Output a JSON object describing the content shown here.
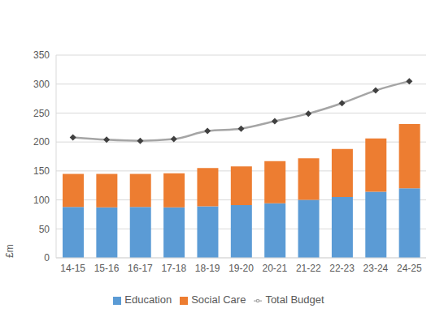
{
  "chart_data": {
    "type": "bar",
    "categories": [
      "14-15",
      "15-16",
      "16-17",
      "17-18",
      "18-19",
      "19-20",
      "20-21",
      "21-22",
      "22-23",
      "23-24",
      "24-25"
    ],
    "series": [
      {
        "name": "Education",
        "color": "#5b9bd5",
        "values": [
          88,
          87,
          88,
          87,
          89,
          91,
          94,
          100,
          105,
          114,
          120
        ]
      },
      {
        "name": "Social Care",
        "color": "#ed7d31",
        "values": [
          57,
          58,
          57,
          59,
          66,
          67,
          73,
          72,
          83,
          92,
          111
        ]
      },
      {
        "name": "Total Budget",
        "type": "line",
        "color": "#a5a5a5",
        "marker": "diamond",
        "values": [
          208,
          204,
          202,
          205,
          219,
          223,
          236,
          249,
          267,
          289,
          305
        ]
      }
    ],
    "y_label": "£m",
    "ylim": [
      0,
      350
    ],
    "yticks": [
      0,
      50,
      100,
      150,
      200,
      250,
      300,
      350
    ],
    "stacked": true,
    "grid": true,
    "legend": "bottom"
  }
}
